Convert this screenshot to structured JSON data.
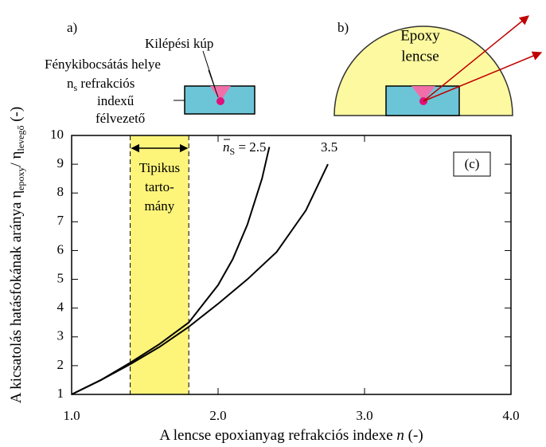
{
  "chart_data": {
    "type": "line",
    "y_label_parts": [
      "A kicsatolás hatásfokának aránya η",
      "epoxy",
      "/ η",
      "levegő",
      " (-)"
    ],
    "x_label_parts": [
      "A lencse epoxianyag refrakciós indexe ",
      "n",
      " (-)"
    ],
    "xlim": [
      1.0,
      4.0
    ],
    "ylim": [
      1,
      10
    ],
    "xticks": [
      {
        "value": 1,
        "label": "1.0"
      },
      {
        "value": 2,
        "label": "2.0"
      },
      {
        "value": 3,
        "label": "3.0"
      },
      {
        "value": 4,
        "label": "4.0"
      }
    ],
    "yticks": [
      1,
      2,
      3,
      4,
      5,
      6,
      7,
      8,
      9,
      10
    ],
    "series": [
      {
        "name_parts": [
          "n",
          "S",
          " = 2.5"
        ],
        "color": "#000000",
        "x": [
          1.0,
          1.2,
          1.4,
          1.6,
          1.8,
          2.0,
          2.1,
          2.2,
          2.3,
          2.35
        ],
        "values": [
          1,
          1.5,
          2.1,
          2.75,
          3.5,
          4.8,
          5.7,
          6.9,
          8.5,
          9.6
        ]
      },
      {
        "name": "3.5",
        "color": "#000000",
        "x": [
          1.0,
          1.2,
          1.4,
          1.6,
          1.8,
          2.0,
          2.2,
          2.4,
          2.6,
          2.75
        ],
        "values": [
          1,
          1.5,
          2.05,
          2.65,
          3.35,
          4.15,
          5.0,
          5.95,
          7.4,
          9.0
        ]
      }
    ],
    "band": {
      "range": [
        1.4,
        1.8
      ],
      "color": "#fdf47a",
      "label_lines": [
        "Tipikus",
        "tarto-",
        "mány"
      ]
    },
    "panel_label": "(c)",
    "diagram_a": {
      "label": "a)",
      "cone": "Kilépési kúp",
      "emission": "Fénykibocsátás  helye",
      "ns_parts": [
        "n",
        "s",
        " refrakciós"
      ],
      "index": "indexű",
      "semi": "félvezető"
    },
    "diagram_b": {
      "label": "b)",
      "lens_lines": [
        "Epoxy",
        "lencse"
      ]
    }
  }
}
